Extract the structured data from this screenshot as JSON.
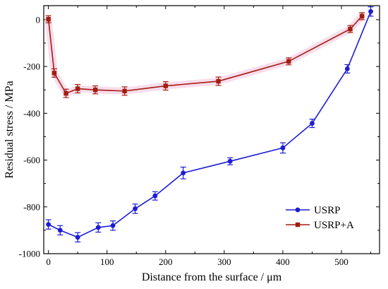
{
  "chart_data": {
    "type": "line",
    "xlabel": "Distance from the surface / μm",
    "ylabel": "Residual stress / MPa",
    "xlim": [
      -8,
      565
    ],
    "ylim": [
      -1000,
      60
    ],
    "xticks": [
      0,
      100,
      200,
      300,
      400,
      500
    ],
    "yticks": [
      -1000,
      -800,
      -600,
      -400,
      -200,
      0
    ],
    "legend_position": "bottom-right",
    "grid": false,
    "series": [
      {
        "name": "USRP",
        "color": "#1c1cd6",
        "marker": "circle",
        "x": [
          0,
          20,
          50,
          85,
          110,
          148,
          182,
          230,
          310,
          400,
          450,
          510,
          550
        ],
        "y": [
          -875,
          -900,
          -930,
          -888,
          -880,
          -808,
          -753,
          -655,
          -605,
          -548,
          -443,
          -210,
          35
        ],
        "err": [
          20,
          20,
          20,
          20,
          20,
          20,
          18,
          25,
          15,
          22,
          18,
          18,
          20
        ]
      },
      {
        "name": "USRP+A",
        "color": "#a31c10",
        "marker": "square",
        "x": [
          0,
          10,
          30,
          50,
          80,
          130,
          200,
          290,
          410,
          515,
          535
        ],
        "y": [
          2,
          -228,
          -315,
          -295,
          -300,
          -305,
          -283,
          -263,
          -178,
          -40,
          15
        ],
        "err": [
          15,
          18,
          18,
          18,
          17,
          18,
          18,
          18,
          15,
          15,
          15
        ]
      }
    ]
  }
}
